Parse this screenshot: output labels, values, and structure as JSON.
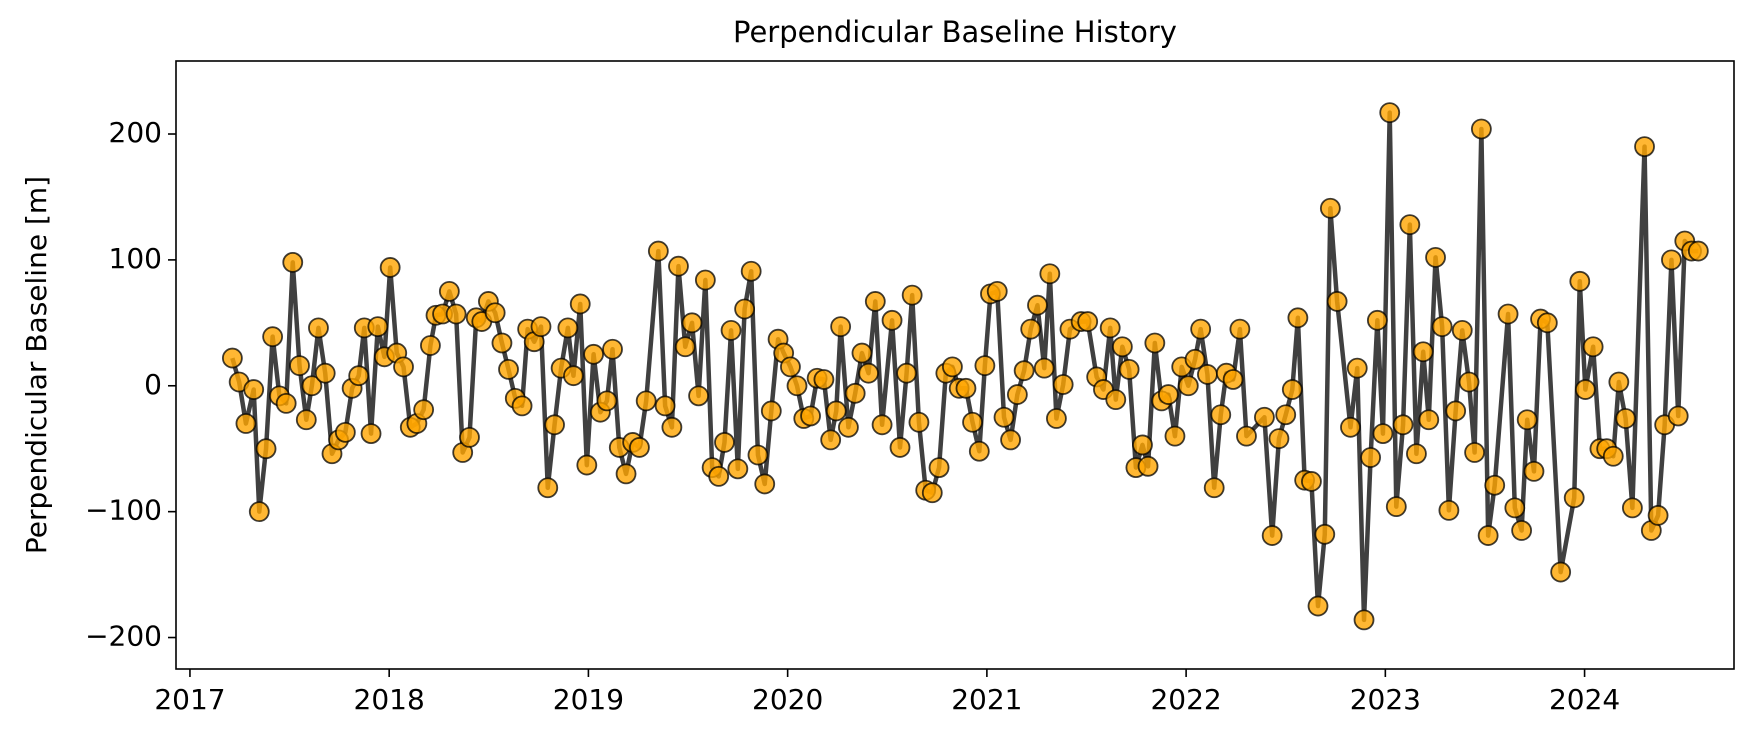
{
  "chart_data": {
    "type": "line",
    "title": "Perpendicular Baseline History",
    "ylabel": "Perpendicular Baseline [m]",
    "line_color": "#404040",
    "color": "#ffa500",
    "grid": false,
    "xlim": [
      2016.93,
      2024.75
    ],
    "xticks": [
      2017,
      2018,
      2019,
      2020,
      2021,
      2022,
      2023,
      2024
    ],
    "ylim": [
      -225,
      258
    ],
    "yticks": [
      {
        "value": -200,
        "label": "−200"
      },
      {
        "value": -100,
        "label": "−100"
      },
      0,
      100,
      200
    ],
    "x": [
      2017.213,
      2017.247,
      2017.281,
      2017.32,
      2017.348,
      2017.382,
      2017.415,
      2017.449,
      2017.483,
      2017.516,
      2017.55,
      2017.584,
      2017.612,
      2017.645,
      2017.679,
      2017.713,
      2017.746,
      2017.78,
      2017.814,
      2017.847,
      2017.875,
      2017.909,
      2017.943,
      2017.976,
      2018.005,
      2018.038,
      2018.072,
      2018.106,
      2018.139,
      2018.173,
      2018.207,
      2018.235,
      2018.268,
      2018.302,
      2018.336,
      2018.369,
      2018.403,
      2018.437,
      2018.465,
      2018.498,
      2018.532,
      2018.566,
      2018.599,
      2018.633,
      2018.667,
      2018.695,
      2018.728,
      2018.762,
      2018.796,
      2018.83,
      2018.863,
      2018.897,
      2018.925,
      2018.959,
      2018.992,
      2019.026,
      2019.06,
      2019.093,
      2019.121,
      2019.155,
      2019.189,
      2019.222,
      2019.256,
      2019.29,
      2019.351,
      2019.385,
      2019.419,
      2019.452,
      2019.486,
      2019.52,
      2019.553,
      2019.587,
      2019.621,
      2019.654,
      2019.683,
      2019.716,
      2019.75,
      2019.784,
      2019.817,
      2019.851,
      2019.885,
      2019.918,
      2019.952,
      2019.98,
      2020.014,
      2020.047,
      2020.081,
      2020.115,
      2020.148,
      2020.182,
      2020.216,
      2020.244,
      2020.266,
      2020.305,
      2020.339,
      2020.373,
      2020.406,
      2020.44,
      2020.474,
      2020.524,
      2020.564,
      2020.597,
      2020.625,
      2020.659,
      2020.693,
      2020.726,
      2020.76,
      2020.794,
      2020.827,
      2020.861,
      2020.895,
      2020.928,
      2020.962,
      2020.99,
      2021.018,
      2021.052,
      2021.086,
      2021.119,
      2021.153,
      2021.187,
      2021.22,
      2021.254,
      2021.288,
      2021.316,
      2021.349,
      2021.383,
      2021.417,
      2021.473,
      2021.506,
      2021.551,
      2021.585,
      2021.619,
      2021.647,
      2021.68,
      2021.714,
      2021.748,
      2021.781,
      2021.809,
      2021.843,
      2021.877,
      2021.911,
      2021.944,
      2021.978,
      2022.011,
      2022.045,
      2022.073,
      2022.107,
      2022.141,
      2022.174,
      2022.202,
      2022.236,
      2022.27,
      2022.303,
      2022.393,
      2022.432,
      2022.466,
      2022.5,
      2022.533,
      2022.561,
      2022.595,
      2022.629,
      2022.662,
      2022.696,
      2022.724,
      2022.758,
      2022.825,
      2022.859,
      2022.893,
      2022.926,
      2022.96,
      2022.988,
      2023.022,
      2023.055,
      2023.089,
      2023.123,
      2023.156,
      2023.19,
      2023.218,
      2023.252,
      2023.285,
      2023.319,
      2023.353,
      2023.386,
      2023.42,
      2023.448,
      2023.482,
      2023.516,
      2023.549,
      2023.616,
      2023.65,
      2023.684,
      2023.712,
      2023.746,
      2023.779,
      2023.813,
      2023.88,
      2023.948,
      2023.976,
      2024.004,
      2024.043,
      2024.077,
      2024.111,
      2024.144,
      2024.172,
      2024.206,
      2024.24,
      2024.301,
      2024.335,
      2024.369,
      2024.402,
      2024.436,
      2024.47,
      2024.503,
      2024.537,
      2024.571
    ],
    "values": [
      22,
      3,
      -30,
      -3,
      -100,
      -50,
      39,
      -8,
      -14,
      98,
      16,
      -27,
      0,
      46,
      10,
      -54,
      -43,
      -37,
      -2,
      8,
      46,
      -38,
      47,
      23,
      94,
      26,
      15,
      -33,
      -30,
      -19,
      32,
      56,
      57,
      75,
      57,
      -53,
      -41,
      54,
      51,
      67,
      58,
      34,
      13,
      -10,
      -16,
      45,
      35,
      47,
      -81,
      -31,
      14,
      46,
      8,
      65,
      -63,
      25,
      -21,
      -12,
      29,
      -49,
      -70,
      -45,
      -49,
      -12,
      107,
      -16,
      -33,
      95,
      31,
      50,
      -8,
      84,
      -65,
      -72,
      -45,
      44,
      -66,
      61,
      91,
      -55,
      -78,
      -20,
      37,
      26,
      15,
      0,
      -26,
      -24,
      6,
      5,
      -43,
      -20,
      47,
      -33,
      -6,
      26,
      10,
      67,
      -31,
      52,
      -49,
      10,
      72,
      -29,
      -83,
      -85,
      -65,
      10,
      15,
      -2,
      -2,
      -29,
      -52,
      16,
      73,
      75,
      -25,
      -43,
      -7,
      12,
      45,
      64,
      14,
      89,
      -26,
      1,
      45,
      51,
      51,
      7,
      -3,
      46,
      -11,
      31,
      13,
      -65,
      -47,
      -64,
      34,
      -12,
      -7,
      -40,
      15,
      0,
      21,
      45,
      9,
      -81,
      -23,
      10,
      5,
      45,
      -40,
      -25,
      -119,
      -42,
      -23,
      -3,
      54,
      -75,
      -76,
      -175,
      -118,
      141,
      67,
      -33,
      14,
      -186,
      -57,
      52,
      -38,
      217,
      -96,
      -31,
      128,
      -54,
      27,
      -27,
      102,
      47,
      -99,
      -20,
      44,
      3,
      -53,
      204,
      -119,
      -79,
      57,
      -97,
      -115,
      -27,
      -68,
      53,
      50,
      -148,
      -89,
      83,
      -3,
      31,
      -50,
      -50,
      -56,
      3,
      -26,
      -97,
      190,
      -115,
      -103,
      -31,
      100,
      -24,
      115,
      107,
      107
    ]
  }
}
